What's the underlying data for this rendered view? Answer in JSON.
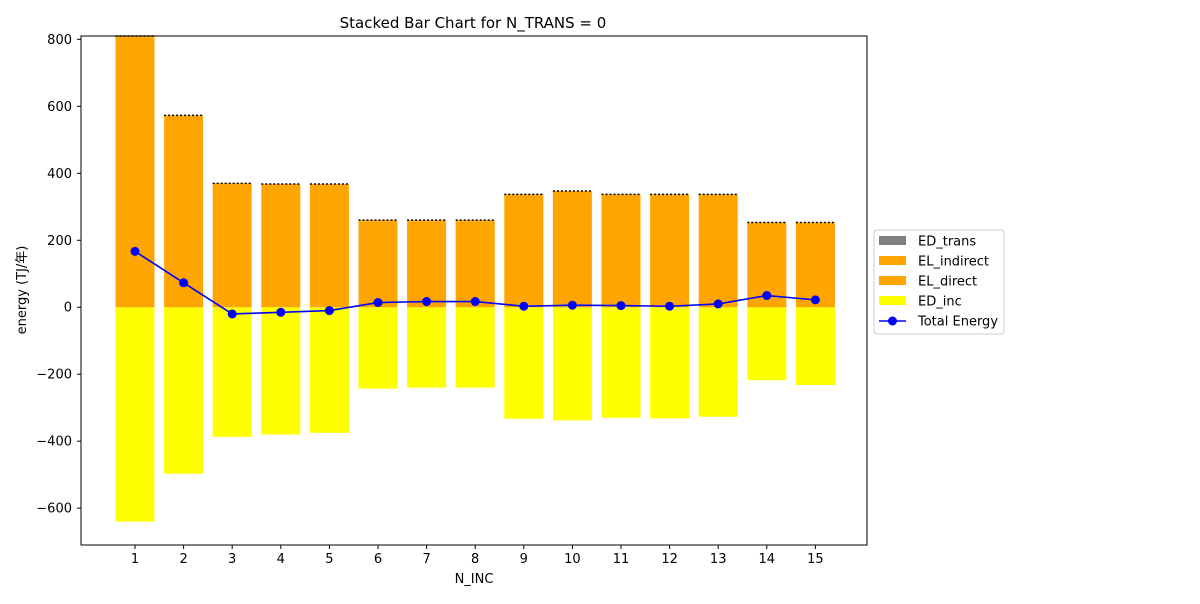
{
  "chart_data": {
    "type": "bar",
    "stacked": true,
    "title": "Stacked Bar Chart for N_TRANS = 0",
    "xlabel": "N_INC",
    "ylabel": "energy (TJ/年)",
    "categories": [
      "1",
      "2",
      "3",
      "4",
      "5",
      "6",
      "7",
      "8",
      "9",
      "10",
      "11",
      "12",
      "13",
      "14",
      "15"
    ],
    "ylim": [
      -710,
      810
    ],
    "yticks": [
      -600,
      -400,
      -200,
      0,
      200,
      400,
      600,
      800
    ],
    "grid": false,
    "legend_position": "center-right",
    "series": [
      {
        "name": "ED_trans",
        "color": "#808080",
        "values": [
          0,
          0,
          0,
          0,
          0,
          0,
          0,
          0,
          0,
          0,
          0,
          0,
          0,
          0,
          0
        ]
      },
      {
        "name": "EL_indirect",
        "color": "#ffa500",
        "values": [
          5,
          3,
          3,
          3,
          3,
          3,
          3,
          3,
          3,
          3,
          3,
          3,
          3,
          3,
          3
        ]
      },
      {
        "name": "EL_direct",
        "color": "#ffa500",
        "values": [
          805,
          570,
          367,
          365,
          365,
          257,
          257,
          257,
          334,
          344,
          334,
          334,
          334,
          250,
          250
        ]
      },
      {
        "name": "ED_inc",
        "color": "#ffff00",
        "values": [
          -640,
          -497,
          -387,
          -380,
          -375,
          -243,
          -240,
          -240,
          -333,
          -338,
          -330,
          -332,
          -327,
          -218,
          -232
        ]
      }
    ],
    "line": {
      "name": "Total Energy",
      "color": "#0000ff",
      "values": [
        167,
        73,
        -20,
        -15,
        -10,
        14,
        17,
        17,
        3,
        6,
        5,
        3,
        10,
        35,
        22
      ]
    }
  }
}
